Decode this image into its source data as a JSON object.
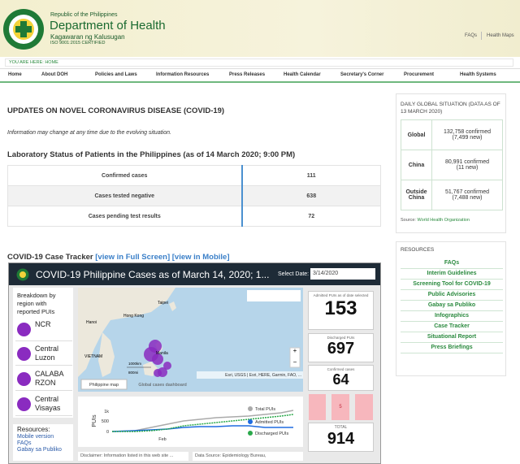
{
  "header": {
    "republic": "Republic of the Philippines",
    "department": "Department of Health",
    "tagalog": "Kagawaran ng Kalusugan",
    "iso": "ISO 9001:2015 CERTIFIED",
    "links": [
      "FAQs",
      "Health Maps"
    ]
  },
  "breadcrumb": {
    "label": "YOU ARE HERE:",
    "current": "HOME"
  },
  "nav": [
    "Home",
    "About DOH",
    "Policies and Laws",
    "Information Resources",
    "Press Releases",
    "Health Calendar",
    "Secretary's Corner",
    "Procurement",
    "Health Systems"
  ],
  "main": {
    "title": "UPDATES ON NOVEL CORONAVIRUS DISEASE (COVID-19)",
    "note": "Information may change at any time due to the evolving situation.",
    "lab_title": "Laboratory Status of Patients in the Philippines (as of 14 March 2020; 9:00 PM)",
    "lab_table": [
      [
        "Confirmed cases",
        111
      ],
      [
        "Cases tested negative",
        638
      ],
      [
        "Cases pending test results",
        72
      ]
    ],
    "tracker": {
      "title": "COVID-19 Case Tracker",
      "links": [
        "[view in Full Screen]",
        "[view in Mobile]"
      ]
    }
  },
  "dashboard": {
    "title": "COVID-19 Philippine Cases as of March 14, 2020; 1...",
    "date_label": "Select Date:",
    "date": "3/14/2020",
    "breakdown_title": "Breakdown by region with reported PUIs",
    "regions": [
      "NCR",
      "Central Luzon",
      "CALABA RZON",
      "Central Visayas"
    ],
    "resources_title": "Resources:",
    "resources": [
      "Mobile version",
      "FAQs",
      "Gabay sa Publiko"
    ],
    "map_labels": [
      "Taipei",
      "Hong Kong",
      "Hanoi",
      "VIETNAM",
      "Manila",
      "1000km",
      "800mi"
    ],
    "map_credit": "Esri, USGS | Esri, HERE, Garmin, FAO, ...",
    "tabs": [
      "Philippine map",
      "Global cases dashboard"
    ],
    "chart": {
      "axis_title": "PUIs",
      "yticks": [
        "1k",
        "500",
        "0"
      ],
      "xtick": "Feb",
      "legend": [
        "Total PUIs",
        "Admitted PUIs",
        "Discharged PUIs"
      ]
    },
    "stats": [
      {
        "label": "Admitted PUIs as of date selected",
        "value": 153
      },
      {
        "label": "Discharged PUIs",
        "value": 697
      },
      {
        "label": "Confirmed cases",
        "value": 64
      }
    ],
    "small_value": 5,
    "total_label": "TOTAL",
    "total": 914,
    "footer": [
      "Disclaimer: Information listed in this web site ...",
      "Data Source: Epidemiology Bureau,"
    ]
  },
  "sidebar": {
    "title": "DAILY GLOBAL SITUATION (DATA AS OF 13 MARCH 2020)",
    "rows": [
      [
        "Global",
        "132,758 confirmed",
        "(7,499 new)"
      ],
      [
        "China",
        "80,991 confirmed",
        "(11 new)"
      ],
      [
        "Outside China",
        "51,767 confirmed",
        "(7,488 new)"
      ]
    ],
    "source_label": "Source:",
    "source": "World Health Organization",
    "resources_title": "RESOURCES",
    "resources": [
      "FAQs",
      "Interim Guidelines",
      "Screening Tool for COVID-19",
      "Public Advisories",
      "Gabay sa Publiko",
      "Infographics",
      "Case Tracker",
      "Situational Report",
      "Press Briefings"
    ]
  }
}
